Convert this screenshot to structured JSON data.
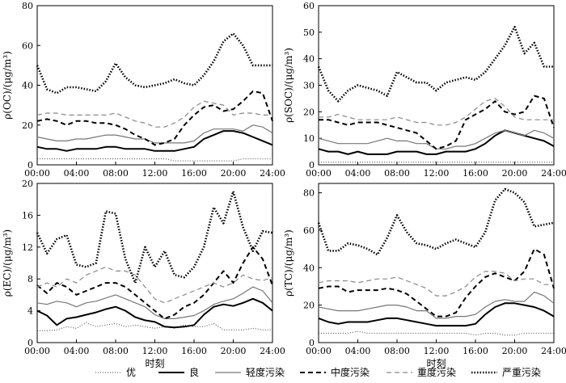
{
  "legend": {
    "items": [
      {
        "label": "优",
        "dash": "1,2",
        "width": 1.0,
        "color": "#444444"
      },
      {
        "label": "良",
        "dash": "",
        "width": 2.0,
        "color": "#000000"
      },
      {
        "label": "轻度污染",
        "dash": "",
        "width": 1.2,
        "color": "#777777"
      },
      {
        "label": "中度污染",
        "dash": "6,4",
        "width": 2.0,
        "color": "#000000"
      },
      {
        "label": "重度污染",
        "dash": "6,4",
        "width": 1.2,
        "color": "#888888"
      },
      {
        "label": "严重污染",
        "dash": "1.5,2",
        "width": 2.6,
        "color": "#000000"
      }
    ]
  },
  "chart_data": [
    {
      "type": "line",
      "ylabel": "ρ(OC)/(μg/m³)",
      "xlabel": "",
      "ylim": [
        0,
        80
      ],
      "yticks": [
        0,
        20,
        40,
        60,
        80
      ],
      "x": [
        "00:00",
        "01:00",
        "02:00",
        "03:00",
        "04:00",
        "05:00",
        "06:00",
        "07:00",
        "08:00",
        "09:00",
        "10:00",
        "11:00",
        "12:00",
        "13:00",
        "14:00",
        "15:00",
        "16:00",
        "17:00",
        "18:00",
        "19:00",
        "20:00",
        "21:00",
        "22:00",
        "23:00",
        "24:00"
      ],
      "xticks": [
        "00:00",
        "04:00",
        "08:00",
        "12:00",
        "16:00",
        "20:00",
        "24:00"
      ],
      "series": [
        {
          "name": "优",
          "values": [
            3,
            3,
            3,
            3,
            3,
            3,
            3,
            3,
            3,
            3,
            3,
            3,
            3,
            3,
            2,
            2,
            2,
            2,
            2,
            2,
            2,
            3,
            3,
            3,
            3
          ]
        },
        {
          "name": "良",
          "values": [
            9,
            8,
            8,
            7,
            8,
            8,
            8,
            9,
            9,
            8,
            8,
            8,
            7,
            7,
            7,
            8,
            9,
            13,
            15,
            17,
            17,
            16,
            14,
            12,
            10
          ]
        },
        {
          "name": "轻度污染",
          "values": [
            14,
            13,
            12,
            12,
            13,
            13,
            14,
            15,
            15,
            14,
            13,
            13,
            11,
            11,
            11,
            11,
            12,
            16,
            18,
            18,
            18,
            17,
            20,
            19,
            16
          ]
        },
        {
          "name": "中度污染",
          "values": [
            22,
            23,
            22,
            20,
            22,
            22,
            21,
            21,
            20,
            18,
            15,
            13,
            10,
            11,
            13,
            20,
            25,
            29,
            30,
            27,
            28,
            32,
            37,
            36,
            22
          ]
        },
        {
          "name": "重度污染",
          "values": [
            25,
            26,
            26,
            25,
            25,
            25,
            25,
            25,
            26,
            24,
            22,
            21,
            19,
            19,
            21,
            24,
            29,
            32,
            31,
            30,
            25,
            26,
            26,
            25,
            25
          ]
        },
        {
          "name": "严重污染",
          "values": [
            50,
            38,
            36,
            39,
            39,
            38,
            37,
            42,
            51,
            44,
            40,
            39,
            40,
            41,
            43,
            41,
            40,
            45,
            52,
            62,
            66,
            60,
            50,
            50,
            50
          ]
        }
      ]
    },
    {
      "type": "line",
      "ylabel": "ρ(SOC)/(μg/m³)",
      "xlabel": "",
      "ylim": [
        0,
        60
      ],
      "yticks": [
        0,
        10,
        20,
        30,
        40,
        50,
        60
      ],
      "x": [
        "00:00",
        "01:00",
        "02:00",
        "03:00",
        "04:00",
        "05:00",
        "06:00",
        "07:00",
        "08:00",
        "09:00",
        "10:00",
        "11:00",
        "12:00",
        "13:00",
        "14:00",
        "15:00",
        "16:00",
        "17:00",
        "18:00",
        "19:00",
        "20:00",
        "21:00",
        "22:00",
        "23:00",
        "24:00"
      ],
      "xticks": [
        "00:00",
        "04:00",
        "08:00",
        "12:00",
        "16:00",
        "20:00",
        "24:00"
      ],
      "series": [
        {
          "name": "优",
          "values": [
            1,
            1,
            1,
            1,
            1,
            1,
            1,
            1,
            1,
            1,
            1,
            1,
            1,
            1,
            1,
            1,
            1,
            1,
            1,
            1,
            1,
            1,
            1,
            1,
            1
          ]
        },
        {
          "name": "良",
          "values": [
            6,
            5,
            5,
            4,
            5,
            4,
            4,
            4,
            5,
            5,
            5,
            4,
            4,
            5,
            5,
            5,
            6,
            8,
            11,
            13,
            12,
            11,
            10,
            9,
            7
          ]
        },
        {
          "name": "轻度污染",
          "values": [
            10,
            9,
            8,
            8,
            8,
            8,
            9,
            10,
            9,
            9,
            8,
            8,
            6,
            6,
            7,
            7,
            8,
            10,
            12,
            13,
            12,
            11,
            13,
            12,
            10
          ]
        },
        {
          "name": "中度污染",
          "values": [
            17,
            17,
            16,
            15,
            16,
            16,
            16,
            15,
            14,
            13,
            12,
            9,
            6,
            7,
            9,
            17,
            19,
            21,
            24,
            20,
            19,
            20,
            26,
            25,
            14
          ]
        },
        {
          "name": "重度污染",
          "values": [
            18,
            18,
            19,
            18,
            17,
            17,
            17,
            17,
            18,
            17,
            16,
            16,
            15,
            15,
            16,
            18,
            21,
            24,
            25,
            22,
            18,
            17,
            17,
            17,
            17
          ]
        },
        {
          "name": "严重污染",
          "values": [
            37,
            28,
            24,
            28,
            30,
            29,
            28,
            26,
            35,
            33,
            31,
            31,
            28,
            31,
            32,
            33,
            32,
            35,
            40,
            45,
            52,
            42,
            46,
            37,
            37
          ]
        }
      ]
    },
    {
      "type": "line",
      "ylabel": "ρ(EC)/(μg/m³)",
      "xlabel": "",
      "ylim": [
        0,
        20
      ],
      "yticks": [
        0,
        4,
        8,
        12,
        16,
        20
      ],
      "x": [
        "00:00",
        "01:00",
        "02:00",
        "03:00",
        "04:00",
        "05:00",
        "06:00",
        "07:00",
        "08:00",
        "09:00",
        "10:00",
        "11:00",
        "12:00",
        "13:00",
        "14:00",
        "15:00",
        "16:00",
        "17:00",
        "18:00",
        "19:00",
        "20:00",
        "21:00",
        "22:00",
        "23:00",
        "24:00"
      ],
      "xticks": [
        "00:00",
        "04:00",
        "08:00",
        "12:00",
        "16:00",
        "20:00",
        "24:00"
      ],
      "series": [
        {
          "name": "优",
          "values": [
            1.5,
            1.5,
            1.6,
            2.0,
            1.8,
            2.5,
            2.0,
            2.2,
            2.4,
            2.0,
            2.2,
            2.0,
            1.8,
            2.0,
            1.8,
            2.2,
            2.0,
            2.0,
            2.4,
            1.6,
            1.6,
            1.6,
            1.8,
            1.6,
            1.6
          ]
        },
        {
          "name": "良",
          "values": [
            4.0,
            3.4,
            2.2,
            3.0,
            3.2,
            3.5,
            3.8,
            4.2,
            4.5,
            4.0,
            3.2,
            2.8,
            2.6,
            2.0,
            1.9,
            2.0,
            2.2,
            3.5,
            4.5,
            4.8,
            4.6,
            5.0,
            5.5,
            5.0,
            4.0
          ]
        },
        {
          "name": "轻度污染",
          "values": [
            5.0,
            4.8,
            5.2,
            5.0,
            4.5,
            5.0,
            5.2,
            5.6,
            6.0,
            5.5,
            5.0,
            4.5,
            3.5,
            3.0,
            3.0,
            3.2,
            3.4,
            4.0,
            4.8,
            5.2,
            5.5,
            6.2,
            7.0,
            6.5,
            5.0
          ]
        },
        {
          "name": "中度污染",
          "values": [
            7.2,
            6.2,
            7.5,
            7.0,
            6.0,
            6.5,
            7.0,
            7.5,
            7.5,
            7.0,
            6.0,
            5.0,
            4.0,
            3.0,
            3.5,
            4.5,
            5.0,
            6.0,
            7.5,
            9.0,
            7.5,
            10.0,
            12.0,
            10.5,
            7.2
          ]
        },
        {
          "name": "重度污染",
          "values": [
            7.0,
            7.5,
            7.0,
            8.0,
            7.5,
            8.5,
            9.0,
            9.5,
            9.0,
            9.0,
            8.5,
            7.0,
            5.5,
            5.0,
            5.5,
            6.0,
            6.5,
            7.0,
            7.5,
            7.0,
            7.5,
            8.5,
            8.0,
            7.8,
            8.2
          ]
        },
        {
          "name": "严重污染",
          "values": [
            13.8,
            11.2,
            13.0,
            13.5,
            9.8,
            9.5,
            10.0,
            16.5,
            16.2,
            10.5,
            7.5,
            12.0,
            9.5,
            11.5,
            8.5,
            8.2,
            9.5,
            12.0,
            17.0,
            15.0,
            19.0,
            14.5,
            11.5,
            14.0,
            13.8
          ]
        }
      ]
    },
    {
      "type": "line",
      "ylabel": "ρ(TC)/(μg/m³)",
      "xlabel": "",
      "ylim": [
        0,
        85
      ],
      "yticks": [
        0,
        20,
        40,
        60,
        80
      ],
      "x": [
        "00:00",
        "01:00",
        "02:00",
        "03:00",
        "04:00",
        "05:00",
        "06:00",
        "07:00",
        "08:00",
        "09:00",
        "10:00",
        "11:00",
        "12:00",
        "13:00",
        "14:00",
        "15:00",
        "16:00",
        "17:00",
        "18:00",
        "19:00",
        "20:00",
        "21:00",
        "22:00",
        "23:00",
        "24:00"
      ],
      "xticks": [
        "00:00",
        "04:00",
        "08:00",
        "12:00",
        "16:00",
        "20:00",
        "24:00"
      ],
      "series": [
        {
          "name": "优",
          "values": [
            5,
            5,
            5,
            5,
            6,
            5,
            5,
            5,
            5,
            5,
            5,
            5,
            5,
            5,
            5,
            5,
            4,
            5,
            5,
            4,
            4,
            5,
            5,
            5,
            5
          ]
        },
        {
          "name": "良",
          "values": [
            13,
            11,
            10,
            11,
            11,
            11,
            12,
            13,
            13,
            12,
            11,
            10,
            9,
            9,
            9,
            9,
            10,
            15,
            19,
            21,
            21,
            20,
            19,
            17,
            14
          ]
        },
        {
          "name": "轻度污染",
          "values": [
            19,
            18,
            17,
            17,
            17,
            18,
            19,
            20,
            20,
            19,
            17,
            17,
            13,
            13,
            14,
            14,
            15,
            19,
            22,
            23,
            22,
            22,
            27,
            25,
            21
          ]
        },
        {
          "name": "中度污染",
          "values": [
            29,
            30,
            30,
            27,
            28,
            28,
            28,
            29,
            28,
            26,
            22,
            18,
            14,
            14,
            16,
            24,
            30,
            35,
            37,
            35,
            33,
            38,
            50,
            47,
            29
          ]
        },
        {
          "name": "重度污染",
          "values": [
            32,
            33,
            33,
            33,
            32,
            33,
            34,
            34,
            35,
            33,
            31,
            29,
            25,
            25,
            27,
            30,
            35,
            38,
            38,
            37,
            33,
            34,
            34,
            31,
            31
          ]
        },
        {
          "name": "严重污染",
          "values": [
            64,
            49,
            49,
            53,
            52,
            50,
            47,
            56,
            68,
            59,
            53,
            52,
            50,
            53,
            55,
            53,
            51,
            59,
            76,
            82,
            80,
            75,
            62,
            63,
            64
          ]
        }
      ]
    }
  ],
  "shared_xlabel": "时刻"
}
